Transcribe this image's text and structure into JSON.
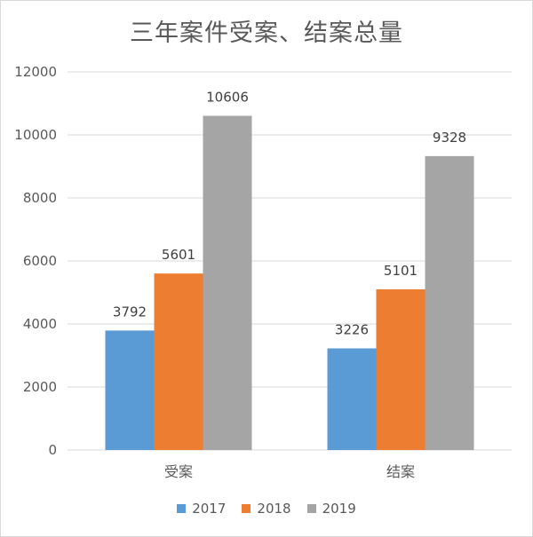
{
  "chart_data": {
    "type": "bar",
    "title": "三年案件受案、结案总量",
    "categories": [
      "受案",
      "结案"
    ],
    "series": [
      {
        "name": "2017",
        "values": [
          3792,
          3226
        ],
        "color": "#5b9bd5"
      },
      {
        "name": "2018",
        "values": [
          5601,
          5101
        ],
        "color": "#ed7d31"
      },
      {
        "name": "2019",
        "values": [
          10606,
          9328
        ],
        "color": "#a5a5a5"
      }
    ],
    "ylim": [
      0,
      12000
    ],
    "yticks": [
      0,
      2000,
      4000,
      6000,
      8000,
      10000,
      12000
    ],
    "xlabel": "",
    "ylabel": "",
    "grid": true,
    "legend_position": "bottom"
  }
}
